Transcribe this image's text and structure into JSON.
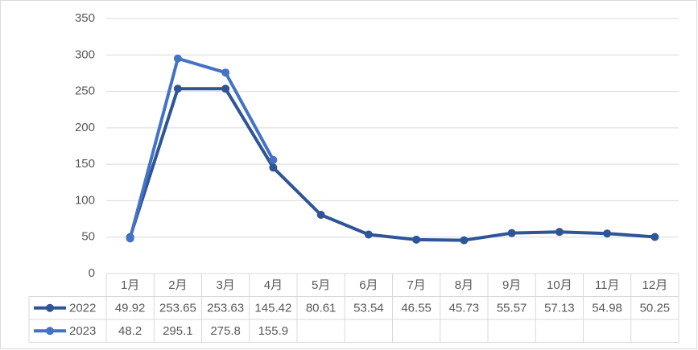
{
  "chart_data": {
    "type": "line",
    "categories": [
      "1月",
      "2月",
      "3月",
      "4月",
      "5月",
      "6月",
      "7月",
      "8月",
      "9月",
      "10月",
      "11月",
      "12月"
    ],
    "series": [
      {
        "name": "2022",
        "color": "#2f5597",
        "values": [
          49.92,
          253.65,
          253.63,
          145.42,
          80.61,
          53.54,
          46.55,
          45.73,
          55.57,
          57.13,
          54.98,
          50.25
        ]
      },
      {
        "name": "2023",
        "color": "#4472c4",
        "values": [
          48.2,
          295.1,
          275.8,
          155.9,
          null,
          null,
          null,
          null,
          null,
          null,
          null,
          null
        ]
      }
    ],
    "ylim": [
      0,
      350
    ],
    "yticks": [
      0,
      50,
      100,
      150,
      200,
      250,
      300,
      350
    ],
    "grid": true,
    "data_table": true
  }
}
